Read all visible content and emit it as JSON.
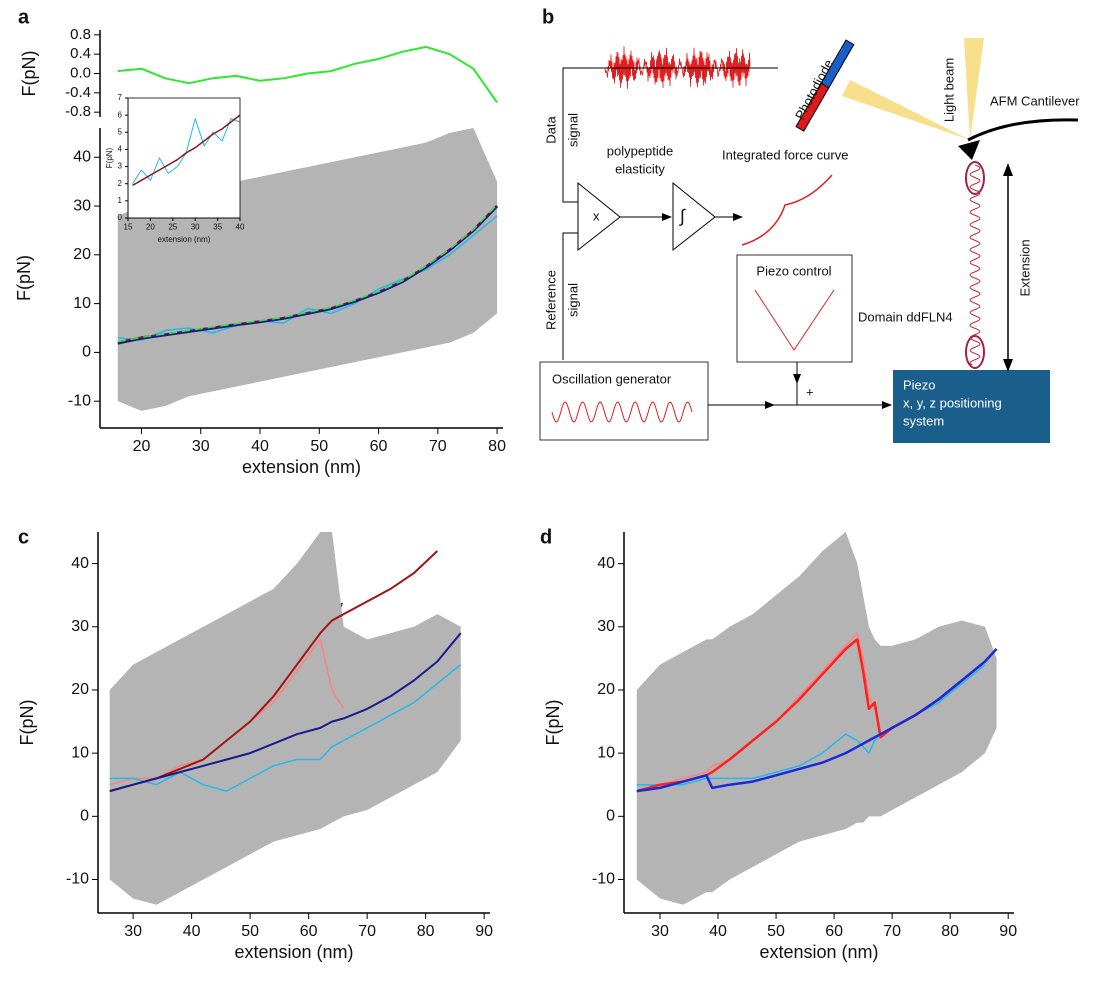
{
  "chart_data": [
    {
      "type": "line",
      "ylabel": "F(pN)",
      "x": [
        16,
        20,
        24,
        28,
        32,
        36,
        40,
        44,
        48,
        52,
        56,
        60,
        64,
        68,
        72,
        76,
        80
      ],
      "ylim": [
        -0.9,
        0.9
      ],
      "yticks": [
        0.8,
        0.4,
        {
          "value": 0,
          "label": "0.0"
        },
        -0.4,
        -0.8
      ],
      "series": [
        {
          "color": "#2ee82e",
          "values": [
            0.05,
            0.1,
            -0.1,
            -0.2,
            -0.1,
            -0.05,
            -0.15,
            -0.1,
            0,
            0.05,
            0.2,
            0.3,
            0.45,
            0.55,
            0.4,
            0.1,
            -0.6
          ]
        }
      ]
    },
    {
      "type": "line",
      "label": "a",
      "xlabel": "extension (nm)",
      "ylabel": "F(pN)",
      "x": [
        16,
        20,
        24,
        28,
        32,
        36,
        40,
        44,
        48,
        52,
        56,
        60,
        64,
        68,
        72,
        76,
        80
      ],
      "xlim": [
        13,
        81
      ],
      "xticks": [
        20,
        30,
        40,
        50,
        60,
        70,
        80
      ],
      "ylim": [
        -15.5,
        46
      ],
      "yticks": [
        -10,
        0,
        10,
        20,
        30,
        40
      ],
      "band": {
        "color": "#b4b4b4",
        "upper": [
          28,
          30,
          32,
          33,
          34,
          35,
          36,
          37,
          38,
          39,
          40,
          41,
          42,
          43,
          45,
          46,
          35
        ],
        "lower": [
          -10,
          -12,
          -11,
          -9,
          -8,
          -7,
          -6,
          -5,
          -4,
          -3,
          -2,
          -1,
          0,
          1,
          2,
          4,
          8
        ]
      },
      "series": [
        {
          "color": "#22b8ee",
          "width": 1.5,
          "values": [
            3,
            2.5,
            4.5,
            5,
            4,
            5.5,
            6.5,
            6,
            9,
            8,
            10,
            13,
            15,
            17,
            20,
            24,
            28
          ]
        },
        {
          "color": "#8b1a1a",
          "width": 3,
          "values": [
            2,
            3,
            3.6,
            4.3,
            5,
            5.7,
            6.3,
            7,
            8,
            9,
            10.5,
            12.3,
            14.5,
            17.5,
            21,
            25,
            30
          ]
        },
        {
          "color": "#1a1a8c",
          "width": 2,
          "values": [
            1.8,
            2.8,
            3.5,
            4.2,
            4.9,
            5.6,
            6.2,
            6.9,
            7.9,
            8.9,
            10.4,
            12.2,
            14.4,
            17.4,
            20.9,
            24.9,
            29.9
          ]
        },
        {
          "color": "#3ee03e",
          "width": 1.5,
          "dash": true,
          "values": [
            2.2,
            3.1,
            3.8,
            4.5,
            5.2,
            5.9,
            6.5,
            7.2,
            8.2,
            9.2,
            10.7,
            12.5,
            14.7,
            17.7,
            21.2,
            25.2,
            30.3
          ]
        }
      ]
    },
    {
      "type": "line",
      "xlabel": "extension (nm)",
      "ylabel": "F(pN)",
      "x": [
        16,
        18,
        20,
        22,
        24,
        26,
        28,
        30,
        32,
        34,
        36,
        38,
        40
      ],
      "xlim": [
        15,
        40
      ],
      "xticks": [
        15,
        20,
        25,
        30,
        35,
        40
      ],
      "ylim": [
        0,
        7
      ],
      "yticks": [
        0,
        1,
        2,
        3,
        4,
        5,
        6,
        7
      ],
      "series": [
        {
          "color": "#22b8ee",
          "width": 1,
          "values": [
            2,
            2.8,
            2.2,
            3.5,
            2.6,
            3,
            3.8,
            5.8,
            4.2,
            5,
            4.5,
            5.8,
            5.6
          ]
        },
        {
          "color": "#8b1a1a",
          "width": 1.5,
          "values": [
            1.9,
            2.2,
            2.5,
            2.8,
            3.1,
            3.4,
            3.8,
            4.1,
            4.5,
            4.9,
            5.2,
            5.6,
            6
          ]
        }
      ]
    },
    {
      "type": "line",
      "label": "c",
      "xlabel": "extension (nm)",
      "ylabel": "F(pN)",
      "x": [
        26,
        30,
        34,
        38,
        42,
        46,
        50,
        54,
        58,
        62,
        64,
        66,
        70,
        74,
        78,
        82,
        86
      ],
      "xlim": [
        24,
        91
      ],
      "xticks": [
        30,
        40,
        50,
        60,
        70,
        80,
        90
      ],
      "ylim": [
        -15.3,
        45
      ],
      "yticks": [
        -10,
        0,
        10,
        20,
        30,
        40
      ],
      "band": {
        "color": "#b4b4b4",
        "upper": [
          20,
          24,
          26,
          28,
          30,
          32,
          34,
          36,
          40,
          45,
          45,
          30,
          28,
          29,
          30,
          32,
          30
        ],
        "lower": [
          -10,
          -13,
          -14,
          -12,
          -10,
          -8,
          -6,
          -4,
          -3,
          -2,
          -1,
          0,
          1,
          3,
          5,
          7,
          12
        ]
      },
      "series": [
        {
          "color": "#ff8080",
          "width": 1.5,
          "values": [
            5,
            6,
            6,
            8,
            9,
            12,
            15,
            18,
            23,
            28,
            20,
            17,
            null,
            null,
            null,
            null,
            null
          ]
        },
        {
          "color": "#22b8ee",
          "width": 1.5,
          "values": [
            6,
            6,
            5,
            7,
            5,
            4,
            6,
            8,
            9,
            9,
            11,
            12,
            14,
            16,
            18,
            21,
            24
          ]
        },
        {
          "color": "#a01414",
          "width": 2,
          "values": [
            4,
            5,
            6,
            7.5,
            9,
            12,
            15,
            19,
            24,
            29,
            31,
            32,
            34,
            36,
            38.5,
            42,
            null
          ]
        },
        {
          "color": "#1a1a8c",
          "width": 2,
          "values": [
            4,
            5,
            6,
            7,
            8,
            9,
            10,
            11.5,
            13,
            14,
            15,
            15.5,
            17,
            19,
            21.5,
            24.5,
            29
          ]
        }
      ]
    },
    {
      "type": "line",
      "label": "d",
      "xlabel": "extension (nm)",
      "ylabel": "F(pN)",
      "x": [
        26,
        30,
        34,
        38,
        39,
        42,
        46,
        50,
        54,
        58,
        62,
        64,
        65,
        66,
        67,
        68,
        70,
        74,
        78,
        82,
        86,
        88
      ],
      "xlim": [
        23.8,
        91
      ],
      "xticks": [
        30,
        40,
        50,
        60,
        70,
        80,
        90
      ],
      "ylim": [
        -15.3,
        45
      ],
      "yticks": [
        -10,
        0,
        10,
        20,
        30,
        40
      ],
      "band": {
        "color": "#b4b4b4",
        "upper": [
          20,
          24,
          26,
          28,
          28,
          30,
          32,
          35,
          38,
          42,
          45,
          40,
          35,
          30,
          28,
          27,
          27,
          28,
          30,
          31,
          30,
          25
        ],
        "lower": [
          -10,
          -13,
          -14,
          -12,
          -12,
          -10,
          -8,
          -6,
          -4,
          -3,
          -2,
          -1,
          -1,
          0,
          0,
          0,
          1,
          3,
          5,
          7,
          10,
          14
        ]
      },
      "series": [
        {
          "color": "#ff8080",
          "width": 1.5,
          "values": [
            5,
            5,
            6,
            7,
            8,
            9,
            12,
            15,
            19,
            23,
            27,
            29,
            25,
            19,
            17,
            null,
            null,
            null,
            null,
            null,
            null,
            null
          ]
        },
        {
          "color": "#22b8ee",
          "width": 1.5,
          "values": [
            5,
            5,
            5,
            6,
            6,
            6,
            6,
            7,
            8,
            10,
            13,
            12,
            11,
            10,
            12,
            13,
            14,
            16,
            18,
            21,
            24,
            null
          ]
        },
        {
          "color": "#ff2020",
          "width": 2.5,
          "values": [
            4,
            5,
            5.5,
            6.5,
            7,
            9,
            12,
            15,
            18.5,
            22.5,
            26.5,
            28,
            23,
            17,
            18,
            12.5,
            14,
            16,
            18.5,
            21.5,
            null,
            null
          ]
        },
        {
          "color": "#1a2ad8",
          "width": 2.5,
          "values": [
            4,
            4.5,
            5.5,
            6.5,
            4.5,
            5,
            5.5,
            6.5,
            7.5,
            8.5,
            10,
            11,
            11.5,
            12,
            12.5,
            13,
            14,
            16,
            18.5,
            21.5,
            24.5,
            26.5
          ]
        }
      ]
    }
  ],
  "diagram": {
    "label": "b",
    "data_signal": [
      "Data",
      "signal"
    ],
    "elasticity": [
      "polypeptide",
      "elasticity"
    ],
    "integrated": "Integrated force curve",
    "multiply": "x",
    "integral": "∫",
    "piezo_control": "Piezo control",
    "photodiode": "Photodiode",
    "light_beam": "Light beam",
    "cantilever": "AFM Cantilever",
    "domain": "Domain ddFLN4",
    "extension": "Extension",
    "reference_signal": [
      "Reference",
      "signal"
    ],
    "oscillation": "Oscillation generator",
    "plus": "+",
    "piezo": [
      "Piezo",
      "x, y, z positioning",
      "system"
    ]
  }
}
